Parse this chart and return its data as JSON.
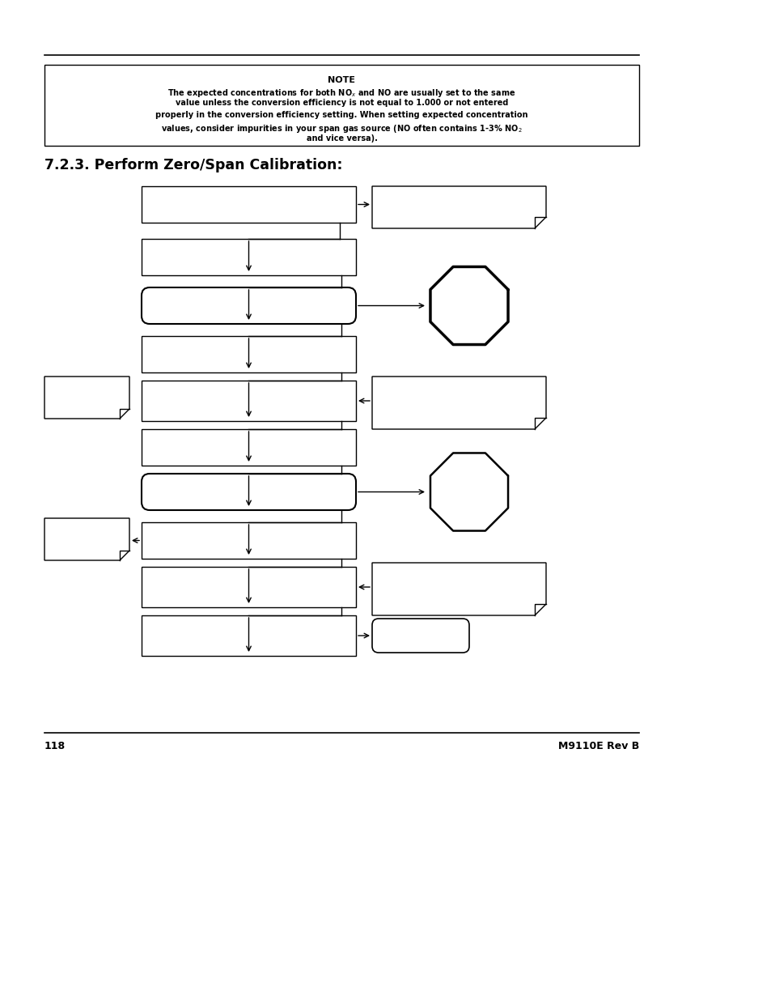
{
  "title": "7.2.3. Perform Zero/Span Calibration:",
  "note_title": "NOTE",
  "page_left": "118",
  "page_right": "M9110E Rev B",
  "bg_color": "#ffffff"
}
